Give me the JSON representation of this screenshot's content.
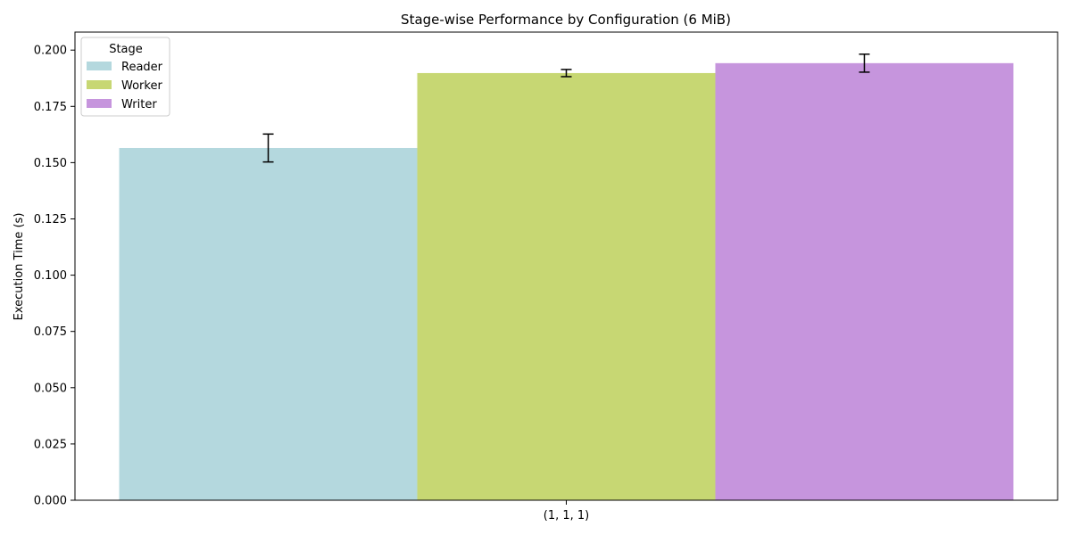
{
  "chart_data": {
    "type": "bar",
    "title": "Stage-wise Performance by Configuration (6 MiB)",
    "xlabel": "",
    "ylabel": "Execution Time (s)",
    "categories": [
      "(1, 1, 1)"
    ],
    "ylim": [
      0,
      0.208
    ],
    "yticks": [
      "0.000",
      "0.025",
      "0.050",
      "0.075",
      "0.100",
      "0.125",
      "0.150",
      "0.175",
      "0.200"
    ],
    "legend": {
      "title": "Stage",
      "placement": "top-left"
    },
    "series": [
      {
        "name": "Reader",
        "values": [
          0.1565
        ],
        "error": [
          0.0062
        ],
        "color": "#b4d8de"
      },
      {
        "name": "Worker",
        "values": [
          0.1898
        ],
        "error": [
          0.0016
        ],
        "color": "#c7d773"
      },
      {
        "name": "Writer",
        "values": [
          0.1942
        ],
        "error": [
          0.004
        ],
        "color": "#c695dd"
      }
    ],
    "grid": false
  }
}
